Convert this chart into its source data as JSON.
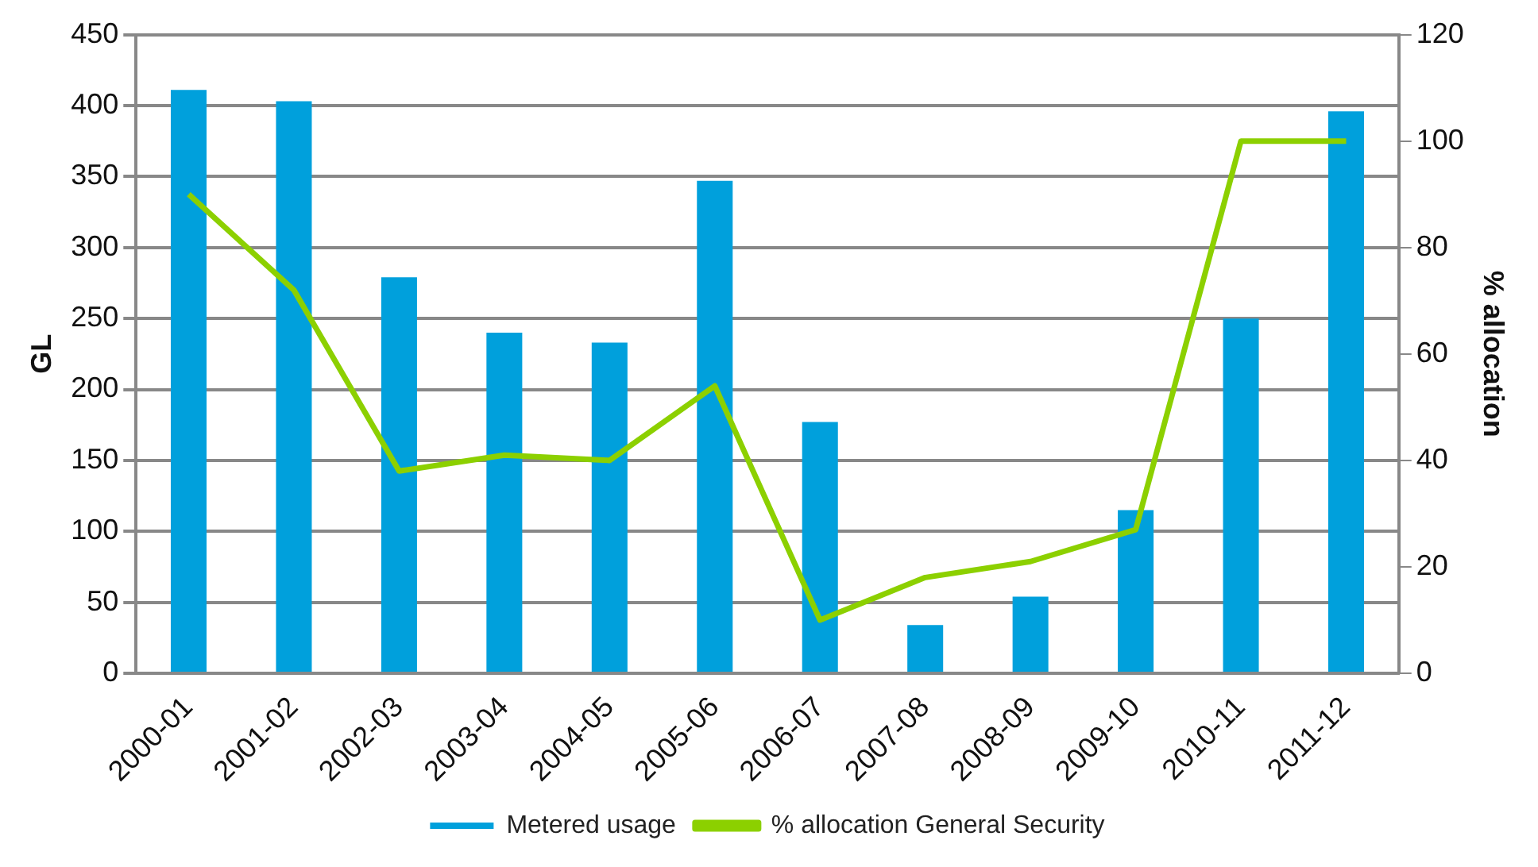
{
  "chart_data": {
    "type": "bar",
    "categories": [
      "2000-01",
      "2001-02",
      "2002-03",
      "2003-04",
      "2004-05",
      "2005-06",
      "2006-07",
      "2007-08",
      "2008-09",
      "2009-10",
      "2010-11",
      "2011-12"
    ],
    "ylabel": "GL",
    "y2label": "% allocation",
    "ylim": [
      0,
      450
    ],
    "yticks": [
      0,
      50,
      100,
      150,
      200,
      250,
      300,
      350,
      400,
      450
    ],
    "y2lim": [
      0,
      120
    ],
    "y2ticks": [
      0,
      20,
      40,
      60,
      80,
      100,
      120
    ],
    "grid": "y",
    "legend": "bottom",
    "marker": "none",
    "series": [
      {
        "name": "Metered usage",
        "color": "#00a0dc",
        "values": [
          411,
          403,
          279,
          240,
          233,
          347,
          177,
          34,
          54,
          115,
          250,
          396
        ]
      },
      {
        "name": "% allocation General Security",
        "type": "line",
        "axis": "y2",
        "color": "#8cd000",
        "values": [
          90,
          72,
          38,
          41,
          40,
          54,
          10,
          18,
          21,
          27,
          100,
          100
        ]
      }
    ]
  }
}
